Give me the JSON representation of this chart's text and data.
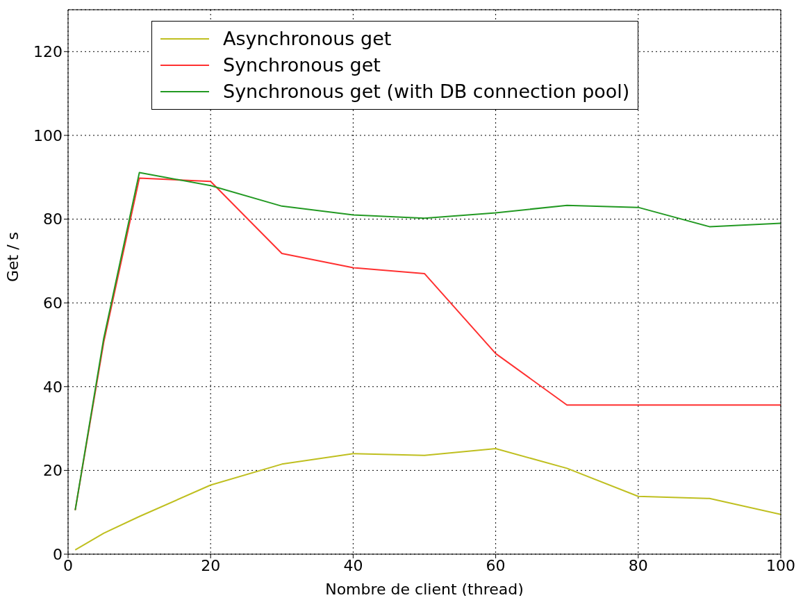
{
  "chart_data": {
    "type": "line",
    "xlabel": "Nombre de client (thread)",
    "ylabel": "Get / s",
    "x": [
      1,
      5,
      10,
      20,
      30,
      40,
      50,
      60,
      70,
      80,
      90,
      100
    ],
    "series": [
      {
        "name": "Asynchronous get",
        "color": "#bfbf1f",
        "values": [
          1,
          5,
          9,
          16.5,
          21.5,
          24,
          23.6,
          25.2,
          20.5,
          13.8,
          13.3,
          9.5
        ]
      },
      {
        "name": "Synchronous get",
        "color": "#ff3030",
        "values": [
          10.5,
          50.6,
          89.8,
          89,
          71.8,
          68.4,
          67,
          47.9,
          35.6,
          35.6,
          35.6,
          35.6
        ]
      },
      {
        "name": "Synchronous get (with DB connection pool)",
        "color": "#229922",
        "values": [
          10.5,
          51.5,
          91.1,
          88,
          83.1,
          81,
          80.2,
          81.5,
          83.3,
          82.8,
          78.2,
          79
        ]
      }
    ],
    "xlim": [
      0,
      100
    ],
    "xticks": [
      0,
      20,
      40,
      60,
      80,
      100
    ],
    "ylim": [
      0,
      130
    ],
    "yticks": [
      0,
      20,
      40,
      60,
      80,
      100,
      120
    ],
    "grid": true,
    "legend": "top",
    "marker": "none",
    "line_style": "solid"
  }
}
